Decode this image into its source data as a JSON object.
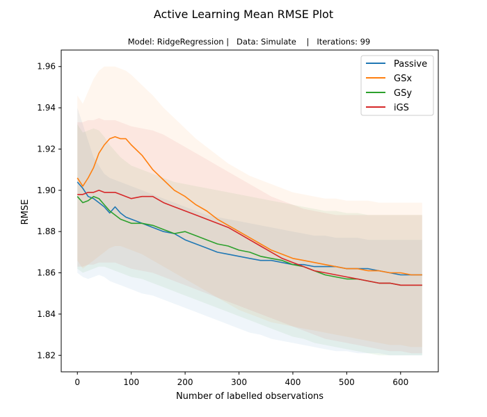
{
  "chart_data": {
    "type": "line",
    "title": "Active Learning Mean RMSE Plot",
    "subtitle": "Model: RidgeRegression |   Data: Simulate    |   Iterations: 99",
    "xlabel": "Number of labelled observations",
    "ylabel": "RMSE",
    "xlim": [
      -30,
      670
    ],
    "ylim": [
      1.812,
      1.968
    ],
    "xticks": [
      0,
      100,
      200,
      300,
      400,
      500,
      600
    ],
    "yticks": [
      1.82,
      1.84,
      1.86,
      1.88,
      1.9,
      1.92,
      1.94,
      1.96
    ],
    "ytick_labels": [
      "1.82",
      "1.84",
      "1.86",
      "1.88",
      "1.90",
      "1.92",
      "1.94",
      "1.96"
    ],
    "legend_position": "top-right",
    "grid": false,
    "x": [
      0,
      10,
      20,
      30,
      40,
      50,
      60,
      70,
      80,
      90,
      100,
      120,
      140,
      160,
      180,
      200,
      220,
      240,
      260,
      280,
      300,
      320,
      340,
      360,
      380,
      400,
      420,
      440,
      460,
      480,
      500,
      520,
      540,
      560,
      580,
      600,
      620,
      640
    ],
    "series": [
      {
        "name": "Passive",
        "color": "#1f77b4",
        "values": [
          1.904,
          1.901,
          1.897,
          1.896,
          1.894,
          1.892,
          1.889,
          1.892,
          1.889,
          1.887,
          1.886,
          1.884,
          1.882,
          1.88,
          1.879,
          1.876,
          1.874,
          1.872,
          1.87,
          1.869,
          1.868,
          1.867,
          1.866,
          1.866,
          1.865,
          1.864,
          1.864,
          1.863,
          1.863,
          1.863,
          1.862,
          1.862,
          1.862,
          1.861,
          1.86,
          1.859,
          1.859,
          1.859
        ],
        "band": {
          "lower": [
            1.86,
            1.858,
            1.857,
            1.858,
            1.859,
            1.858,
            1.856,
            1.855,
            1.854,
            1.853,
            1.852,
            1.85,
            1.849,
            1.847,
            1.845,
            1.843,
            1.841,
            1.839,
            1.837,
            1.835,
            1.833,
            1.831,
            1.83,
            1.828,
            1.827,
            1.826,
            1.825,
            1.824,
            1.823,
            1.822,
            1.822,
            1.821,
            1.821,
            1.821,
            1.82,
            1.82,
            1.82,
            1.82
          ],
          "upper": [
            1.94,
            1.932,
            1.924,
            1.916,
            1.912,
            1.908,
            1.906,
            1.905,
            1.904,
            1.903,
            1.902,
            1.9,
            1.898,
            1.896,
            1.894,
            1.892,
            1.89,
            1.888,
            1.887,
            1.886,
            1.885,
            1.884,
            1.883,
            1.882,
            1.881,
            1.88,
            1.879,
            1.878,
            1.878,
            1.877,
            1.877,
            1.877,
            1.876,
            1.876,
            1.876,
            1.876,
            1.876,
            1.876
          ]
        }
      },
      {
        "name": "GSx",
        "color": "#ff7f0e",
        "values": [
          1.906,
          1.902,
          1.906,
          1.911,
          1.918,
          1.922,
          1.925,
          1.926,
          1.925,
          1.925,
          1.922,
          1.917,
          1.91,
          1.905,
          1.9,
          1.897,
          1.893,
          1.89,
          1.886,
          1.883,
          1.88,
          1.877,
          1.874,
          1.871,
          1.869,
          1.867,
          1.866,
          1.865,
          1.864,
          1.863,
          1.862,
          1.862,
          1.861,
          1.861,
          1.86,
          1.86,
          1.859,
          1.859
        ],
        "band": {
          "lower": [
            1.866,
            1.862,
            1.864,
            1.866,
            1.868,
            1.87,
            1.872,
            1.873,
            1.873,
            1.872,
            1.871,
            1.869,
            1.866,
            1.863,
            1.86,
            1.857,
            1.854,
            1.851,
            1.848,
            1.845,
            1.842,
            1.84,
            1.838,
            1.836,
            1.835,
            1.834,
            1.833,
            1.832,
            1.831,
            1.83,
            1.829,
            1.828,
            1.827,
            1.826,
            1.825,
            1.825,
            1.824,
            1.824
          ],
          "upper": [
            1.946,
            1.942,
            1.948,
            1.954,
            1.958,
            1.96,
            1.96,
            1.96,
            1.959,
            1.958,
            1.956,
            1.951,
            1.946,
            1.94,
            1.935,
            1.93,
            1.925,
            1.921,
            1.917,
            1.913,
            1.91,
            1.907,
            1.905,
            1.903,
            1.901,
            1.899,
            1.898,
            1.897,
            1.896,
            1.896,
            1.895,
            1.895,
            1.895,
            1.894,
            1.894,
            1.894,
            1.894,
            1.894
          ]
        }
      },
      {
        "name": "GSy",
        "color": "#2ca02c",
        "values": [
          1.897,
          1.894,
          1.895,
          1.897,
          1.896,
          1.893,
          1.89,
          1.888,
          1.886,
          1.885,
          1.884,
          1.884,
          1.883,
          1.881,
          1.879,
          1.88,
          1.878,
          1.876,
          1.874,
          1.873,
          1.871,
          1.87,
          1.868,
          1.867,
          1.866,
          1.864,
          1.863,
          1.861,
          1.859,
          1.858,
          1.857,
          1.857,
          1.856,
          1.855,
          1.855,
          1.854,
          1.854,
          1.854
        ],
        "band": {
          "lower": [
            1.862,
            1.86,
            1.861,
            1.862,
            1.863,
            1.863,
            1.862,
            1.861,
            1.86,
            1.859,
            1.858,
            1.857,
            1.855,
            1.853,
            1.851,
            1.849,
            1.847,
            1.845,
            1.843,
            1.841,
            1.839,
            1.837,
            1.835,
            1.833,
            1.831,
            1.829,
            1.828,
            1.826,
            1.825,
            1.824,
            1.823,
            1.822,
            1.821,
            1.82,
            1.82,
            1.82,
            1.82,
            1.82
          ],
          "upper": [
            1.932,
            1.928,
            1.929,
            1.93,
            1.929,
            1.926,
            1.922,
            1.919,
            1.916,
            1.914,
            1.912,
            1.91,
            1.908,
            1.906,
            1.904,
            1.903,
            1.902,
            1.901,
            1.9,
            1.899,
            1.898,
            1.897,
            1.896,
            1.895,
            1.894,
            1.893,
            1.892,
            1.891,
            1.89,
            1.89,
            1.889,
            1.889,
            1.888,
            1.888,
            1.888,
            1.888,
            1.888,
            1.888
          ]
        }
      },
      {
        "name": "iGS",
        "color": "#d62728",
        "values": [
          1.898,
          1.898,
          1.899,
          1.899,
          1.9,
          1.899,
          1.899,
          1.899,
          1.898,
          1.897,
          1.896,
          1.897,
          1.897,
          1.894,
          1.892,
          1.89,
          1.888,
          1.886,
          1.884,
          1.882,
          1.879,
          1.876,
          1.873,
          1.87,
          1.867,
          1.865,
          1.863,
          1.861,
          1.86,
          1.859,
          1.858,
          1.857,
          1.856,
          1.855,
          1.855,
          1.854,
          1.854,
          1.854
        ],
        "band": {
          "lower": [
            1.863,
            1.863,
            1.864,
            1.864,
            1.865,
            1.865,
            1.865,
            1.865,
            1.864,
            1.863,
            1.862,
            1.861,
            1.86,
            1.858,
            1.856,
            1.854,
            1.852,
            1.85,
            1.848,
            1.846,
            1.844,
            1.842,
            1.84,
            1.838,
            1.836,
            1.834,
            1.832,
            1.83,
            1.828,
            1.827,
            1.826,
            1.825,
            1.824,
            1.823,
            1.822,
            1.822,
            1.821,
            1.821
          ],
          "upper": [
            1.933,
            1.933,
            1.934,
            1.934,
            1.935,
            1.934,
            1.934,
            1.934,
            1.933,
            1.932,
            1.931,
            1.93,
            1.929,
            1.927,
            1.924,
            1.921,
            1.918,
            1.915,
            1.912,
            1.909,
            1.906,
            1.903,
            1.9,
            1.897,
            1.895,
            1.893,
            1.891,
            1.89,
            1.889,
            1.888,
            1.888,
            1.888,
            1.888,
            1.888,
            1.888,
            1.888,
            1.888,
            1.888
          ]
        }
      }
    ]
  }
}
